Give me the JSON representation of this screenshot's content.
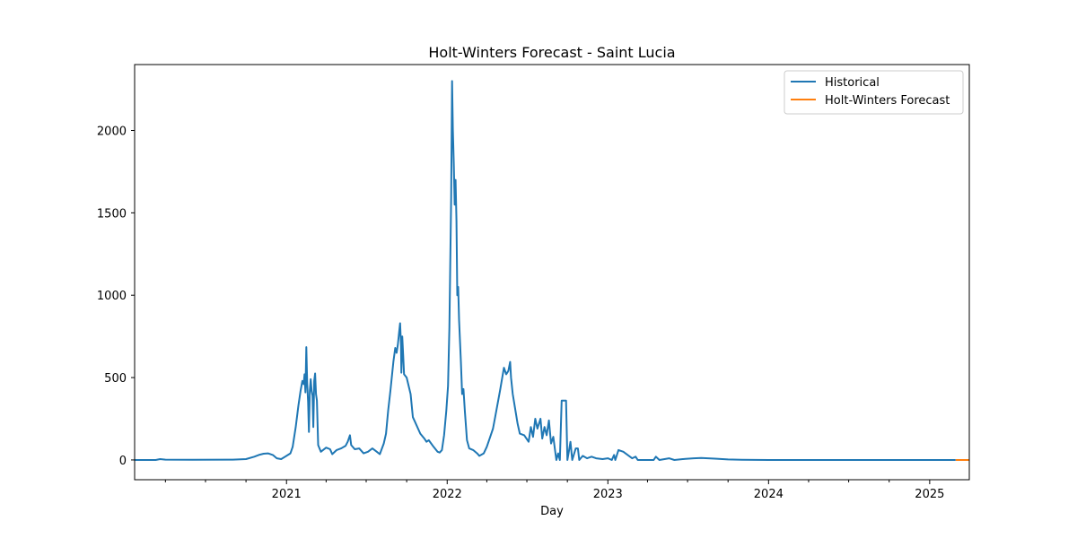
{
  "chart_data": {
    "type": "line",
    "title": "Holt-Winters Forecast - Saint Lucia",
    "xlabel": "Day",
    "ylabel": "",
    "x_is_date": true,
    "xlim": [
      "2020-01-22",
      "2025-04-01"
    ],
    "ylim": [
      -120,
      2400
    ],
    "xticks": [
      {
        "label": "2021",
        "date": "2021-01-01"
      },
      {
        "label": "2022",
        "date": "2022-01-01"
      },
      {
        "label": "2023",
        "date": "2023-01-01"
      },
      {
        "label": "2024",
        "date": "2024-01-01"
      },
      {
        "label": "2025",
        "date": "2025-01-01"
      }
    ],
    "minor_xticks": [
      "2020-04-01",
      "2020-07-01",
      "2020-10-01",
      "2021-04-01",
      "2021-07-01",
      "2021-10-01",
      "2022-04-01",
      "2022-07-01",
      "2022-10-01",
      "2023-04-01",
      "2023-07-01",
      "2023-10-01",
      "2024-04-01",
      "2024-07-01",
      "2024-10-01"
    ],
    "yticks": [
      0,
      500,
      1000,
      1500,
      2000
    ],
    "grid": false,
    "legend_position": "top-right",
    "series": [
      {
        "name": "Historical",
        "color": "#1f77b4",
        "points": [
          [
            "2020-01-22",
            0
          ],
          [
            "2020-03-10",
            0
          ],
          [
            "2020-03-20",
            5
          ],
          [
            "2020-04-01",
            2
          ],
          [
            "2020-06-01",
            1
          ],
          [
            "2020-09-01",
            2
          ],
          [
            "2020-10-01",
            5
          ],
          [
            "2020-10-20",
            20
          ],
          [
            "2020-11-01",
            32
          ],
          [
            "2020-11-10",
            38
          ],
          [
            "2020-11-20",
            40
          ],
          [
            "2020-12-01",
            30
          ],
          [
            "2020-12-10",
            10
          ],
          [
            "2020-12-20",
            5
          ],
          [
            "2021-01-01",
            25
          ],
          [
            "2021-01-10",
            40
          ],
          [
            "2021-01-15",
            80
          ],
          [
            "2021-01-22",
            200
          ],
          [
            "2021-01-28",
            330
          ],
          [
            "2021-02-02",
            420
          ],
          [
            "2021-02-06",
            480
          ],
          [
            "2021-02-09",
            460
          ],
          [
            "2021-02-11",
            520
          ],
          [
            "2021-02-13",
            410
          ],
          [
            "2021-02-15",
            685
          ],
          [
            "2021-02-17",
            460
          ],
          [
            "2021-02-19",
            350
          ],
          [
            "2021-02-21",
            170
          ],
          [
            "2021-02-23",
            420
          ],
          [
            "2021-02-25",
            490
          ],
          [
            "2021-02-27",
            420
          ],
          [
            "2021-03-01",
            390
          ],
          [
            "2021-03-03",
            200
          ],
          [
            "2021-03-05",
            480
          ],
          [
            "2021-03-07",
            525
          ],
          [
            "2021-03-09",
            400
          ],
          [
            "2021-03-11",
            360
          ],
          [
            "2021-03-14",
            90
          ],
          [
            "2021-03-20",
            50
          ],
          [
            "2021-04-01",
            75
          ],
          [
            "2021-04-10",
            65
          ],
          [
            "2021-04-15",
            35
          ],
          [
            "2021-04-25",
            60
          ],
          [
            "2021-05-05",
            70
          ],
          [
            "2021-05-15",
            85
          ],
          [
            "2021-05-20",
            110
          ],
          [
            "2021-05-25",
            150
          ],
          [
            "2021-05-28",
            90
          ],
          [
            "2021-06-05",
            65
          ],
          [
            "2021-06-15",
            70
          ],
          [
            "2021-06-25",
            40
          ],
          [
            "2021-07-05",
            50
          ],
          [
            "2021-07-15",
            70
          ],
          [
            "2021-07-25",
            50
          ],
          [
            "2021-08-01",
            35
          ],
          [
            "2021-08-10",
            100
          ],
          [
            "2021-08-15",
            160
          ],
          [
            "2021-08-20",
            300
          ],
          [
            "2021-08-25",
            420
          ],
          [
            "2021-09-01",
            600
          ],
          [
            "2021-09-05",
            680
          ],
          [
            "2021-09-08",
            650
          ],
          [
            "2021-09-11",
            700
          ],
          [
            "2021-09-14",
            780
          ],
          [
            "2021-09-16",
            830
          ],
          [
            "2021-09-18",
            700
          ],
          [
            "2021-09-19",
            530
          ],
          [
            "2021-09-21",
            750
          ],
          [
            "2021-09-23",
            640
          ],
          [
            "2021-09-25",
            520
          ],
          [
            "2021-10-01",
            500
          ],
          [
            "2021-10-10",
            400
          ],
          [
            "2021-10-15",
            260
          ],
          [
            "2021-10-20",
            230
          ],
          [
            "2021-11-01",
            160
          ],
          [
            "2021-11-10",
            130
          ],
          [
            "2021-11-15",
            110
          ],
          [
            "2021-11-20",
            120
          ],
          [
            "2021-12-01",
            80
          ],
          [
            "2021-12-10",
            50
          ],
          [
            "2021-12-15",
            45
          ],
          [
            "2021-12-20",
            60
          ],
          [
            "2021-12-25",
            150
          ],
          [
            "2021-12-30",
            300
          ],
          [
            "2022-01-03",
            450
          ],
          [
            "2022-01-06",
            800
          ],
          [
            "2022-01-08",
            1200
          ],
          [
            "2022-01-10",
            1600
          ],
          [
            "2022-01-12",
            2300
          ],
          [
            "2022-01-14",
            2000
          ],
          [
            "2022-01-16",
            1800
          ],
          [
            "2022-01-18",
            1550
          ],
          [
            "2022-01-20",
            1700
          ],
          [
            "2022-01-22",
            1450
          ],
          [
            "2022-01-24",
            1000
          ],
          [
            "2022-01-26",
            1050
          ],
          [
            "2022-01-28",
            850
          ],
          [
            "2022-02-01",
            600
          ],
          [
            "2022-02-04",
            400
          ],
          [
            "2022-02-07",
            430
          ],
          [
            "2022-02-10",
            300
          ],
          [
            "2022-02-15",
            120
          ],
          [
            "2022-02-20",
            70
          ],
          [
            "2022-03-01",
            60
          ],
          [
            "2022-03-10",
            40
          ],
          [
            "2022-03-15",
            25
          ],
          [
            "2022-03-25",
            40
          ],
          [
            "2022-04-01",
            80
          ],
          [
            "2022-04-10",
            150
          ],
          [
            "2022-04-15",
            190
          ],
          [
            "2022-04-20",
            260
          ],
          [
            "2022-05-01",
            420
          ],
          [
            "2022-05-10",
            560
          ],
          [
            "2022-05-15",
            520
          ],
          [
            "2022-05-20",
            540
          ],
          [
            "2022-05-24",
            595
          ],
          [
            "2022-05-26",
            500
          ],
          [
            "2022-05-30",
            400
          ],
          [
            "2022-06-05",
            300
          ],
          [
            "2022-06-10",
            220
          ],
          [
            "2022-06-15",
            160
          ],
          [
            "2022-06-25",
            150
          ],
          [
            "2022-07-05",
            110
          ],
          [
            "2022-07-10",
            200
          ],
          [
            "2022-07-15",
            140
          ],
          [
            "2022-07-20",
            250
          ],
          [
            "2022-07-25",
            190
          ],
          [
            "2022-08-01",
            250
          ],
          [
            "2022-08-05",
            130
          ],
          [
            "2022-08-10",
            200
          ],
          [
            "2022-08-15",
            150
          ],
          [
            "2022-08-20",
            240
          ],
          [
            "2022-08-25",
            100
          ],
          [
            "2022-08-30",
            140
          ],
          [
            "2022-09-03",
            60
          ],
          [
            "2022-09-06",
            0
          ],
          [
            "2022-09-10",
            40
          ],
          [
            "2022-09-14",
            0
          ],
          [
            "2022-09-18",
            360
          ],
          [
            "2022-09-28",
            360
          ],
          [
            "2022-10-01",
            0
          ],
          [
            "2022-10-05",
            60
          ],
          [
            "2022-10-08",
            110
          ],
          [
            "2022-10-12",
            0
          ],
          [
            "2022-10-20",
            70
          ],
          [
            "2022-10-25",
            70
          ],
          [
            "2022-10-28",
            0
          ],
          [
            "2022-11-05",
            25
          ],
          [
            "2022-11-15",
            10
          ],
          [
            "2022-11-25",
            20
          ],
          [
            "2022-12-05",
            10
          ],
          [
            "2022-12-20",
            5
          ],
          [
            "2023-01-01",
            10
          ],
          [
            "2023-01-10",
            0
          ],
          [
            "2023-01-15",
            30
          ],
          [
            "2023-01-18",
            0
          ],
          [
            "2023-01-25",
            60
          ],
          [
            "2023-02-05",
            50
          ],
          [
            "2023-02-15",
            30
          ],
          [
            "2023-02-25",
            10
          ],
          [
            "2023-03-05",
            20
          ],
          [
            "2023-03-10",
            0
          ],
          [
            "2023-04-01",
            0
          ],
          [
            "2023-04-15",
            0
          ],
          [
            "2023-04-20",
            20
          ],
          [
            "2023-04-28",
            0
          ],
          [
            "2023-05-20",
            10
          ],
          [
            "2023-06-01",
            0
          ],
          [
            "2023-06-20",
            5
          ],
          [
            "2023-07-15",
            10
          ],
          [
            "2023-08-01",
            12
          ],
          [
            "2023-09-01",
            8
          ],
          [
            "2023-10-01",
            3
          ],
          [
            "2023-11-01",
            1
          ],
          [
            "2024-01-01",
            0
          ],
          [
            "2024-06-01",
            0
          ],
          [
            "2025-01-01",
            0
          ],
          [
            "2025-03-01",
            0
          ]
        ]
      },
      {
        "name": "Holt-Winters Forecast",
        "color": "#ff7f0e",
        "points": [
          [
            "2025-03-01",
            0
          ],
          [
            "2025-04-01",
            0
          ]
        ]
      }
    ]
  }
}
